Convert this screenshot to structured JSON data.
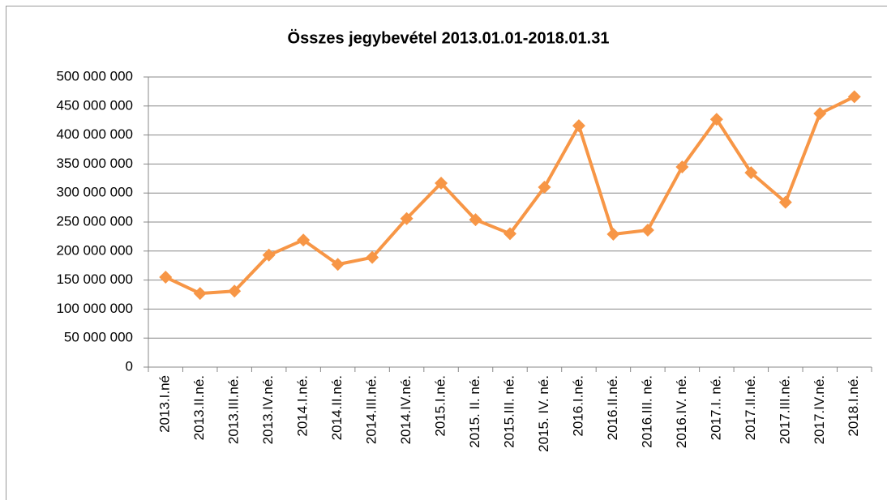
{
  "chart_data": {
    "type": "line",
    "title": "Összes jegybevétel  2013.01.01-2018.01.31",
    "categories": [
      "2013.I.né",
      "2013.II.né.",
      "2013.III.né.",
      "2013.IV.né.",
      "2014.I.né.",
      "2014.II.né.",
      "2014.III.né.",
      "2014.IV.né.",
      "2015.I.né.",
      "2015. II. né.",
      "2015.III. né.",
      "2015. IV. né.",
      "2016.I.né.",
      "2016.II.né.",
      "2016.III. né.",
      "2016.IV. né.",
      "2017.I. né.",
      "2017.II.né.",
      "2017.III.né.",
      "2017.IV.né.",
      "2018.I.né."
    ],
    "series": [
      {
        "name": "Összes jegybevétel",
        "color": "#f79646",
        "values": [
          155000000,
          127000000,
          131000000,
          193000000,
          219000000,
          177000000,
          189000000,
          256000000,
          317000000,
          254000000,
          230000000,
          310000000,
          416000000,
          229000000,
          236000000,
          345000000,
          427000000,
          335000000,
          284000000,
          437000000,
          466000000
        ]
      }
    ],
    "ylim": [
      0,
      500000000
    ],
    "yticks": [
      0,
      {
        "value": 50000000,
        "label": "50 000 000"
      },
      {
        "value": 100000000,
        "label": "100 000 000"
      },
      {
        "value": 150000000,
        "label": "150 000 000"
      },
      {
        "value": 200000000,
        "label": "200 000 000"
      },
      {
        "value": 250000000,
        "label": "250 000 000"
      },
      {
        "value": 300000000,
        "label": "300 000 000"
      },
      {
        "value": 350000000,
        "label": "350 000 000"
      },
      {
        "value": 400000000,
        "label": "400 000 000"
      },
      {
        "value": 450000000,
        "label": "450 000 000"
      },
      {
        "value": 500000000,
        "label": "500 000 000"
      }
    ],
    "grid": true,
    "legend": false
  }
}
